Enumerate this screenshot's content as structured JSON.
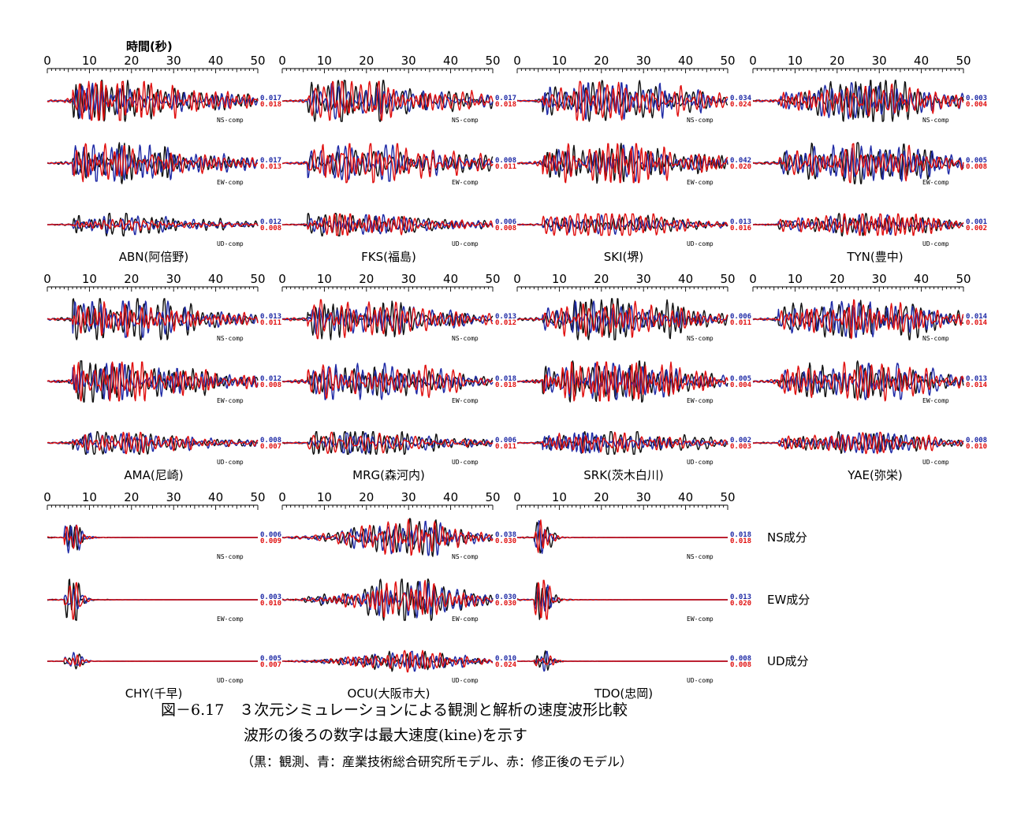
{
  "figure": {
    "axis_title": "時間(秒)",
    "caption_line1": "図－6.17　３次元シミュレーションによる観測と解析の速度波形比較",
    "caption_line2": "波形の後ろの数字は最大速度(kine)を示す",
    "caption_line3": "（黒：観測、青：産業技術総合研究所モデル、赤：修正後のモデル）",
    "component_labels": [
      "NS成分",
      "EW成分",
      "UD成分"
    ],
    "trace_tags": [
      "NS-comp",
      "EW-comp",
      "UD-comp"
    ],
    "colors": {
      "observed": "#111111",
      "aist_model": "#1f2aa6",
      "revised_model": "#e01010"
    }
  },
  "chart_data": {
    "type": "line",
    "x_axis": {
      "label": "時間(秒)",
      "range": [
        0,
        50
      ],
      "ticks": [
        0,
        10,
        20,
        30,
        40,
        50
      ]
    },
    "series_legend": [
      "黒：観測",
      "青：産業技術総合研究所モデル",
      "赤：修正後のモデル"
    ],
    "stations": [
      {
        "label": "ABN(阿倍野)",
        "peaks": {
          "NS": [
            "0.017",
            "0.018"
          ],
          "EW": [
            "0.017",
            "0.013"
          ],
          "UD": [
            "0.012",
            "0.008"
          ]
        }
      },
      {
        "label": "FKS(福島)",
        "peaks": {
          "NS": [
            "0.017",
            "0.018"
          ],
          "EW": [
            "0.008",
            "0.011"
          ],
          "UD": [
            "0.006",
            "0.008"
          ]
        }
      },
      {
        "label": "SKI(堺)",
        "peaks": {
          "NS": [
            "0.034",
            "0.024"
          ],
          "EW": [
            "0.042",
            "0.020"
          ],
          "UD": [
            "0.013",
            "0.016"
          ]
        }
      },
      {
        "label": "TYN(豊中)",
        "peaks": {
          "NS": [
            "0.003",
            "0.004"
          ],
          "EW": [
            "0.005",
            "0.008"
          ],
          "UD": [
            "0.001",
            "0.002"
          ]
        }
      },
      {
        "label": "AMA(尼崎)",
        "peaks": {
          "NS": [
            "0.013",
            "0.011"
          ],
          "EW": [
            "0.012",
            "0.008"
          ],
          "UD": [
            "0.008",
            "0.007"
          ]
        }
      },
      {
        "label": "MRG(森河内)",
        "peaks": {
          "NS": [
            "0.013",
            "0.012"
          ],
          "EW": [
            "0.018",
            "0.018"
          ],
          "UD": [
            "0.006",
            "0.011"
          ]
        }
      },
      {
        "label": "SRK(茨木白川)",
        "peaks": {
          "NS": [
            "0.006",
            "0.011"
          ],
          "EW": [
            "0.005",
            "0.004"
          ],
          "UD": [
            "0.002",
            "0.003"
          ]
        }
      },
      {
        "label": "YAE(弥栄)",
        "peaks": {
          "NS": [
            "0.014",
            "0.014"
          ],
          "EW": [
            "0.013",
            "0.014"
          ],
          "UD": [
            "0.008",
            "0.010"
          ]
        }
      },
      {
        "label": "CHY(千早)",
        "peaks": {
          "NS": [
            "0.006",
            "0.009"
          ],
          "EW": [
            "0.003",
            "0.010"
          ],
          "UD": [
            "0.005",
            "0.007"
          ]
        }
      },
      {
        "label": "OCU(大阪市大)",
        "peaks": {
          "NS": [
            "0.038",
            "0.030"
          ],
          "EW": [
            "0.030",
            "0.030"
          ],
          "UD": [
            "0.010",
            "0.024"
          ]
        }
      },
      {
        "label": "TDO(忠岡)",
        "peaks": {
          "NS": [
            "0.018",
            "0.018"
          ],
          "EW": [
            "0.013",
            "0.020"
          ],
          "UD": [
            "0.008",
            "0.008"
          ]
        }
      }
    ]
  }
}
